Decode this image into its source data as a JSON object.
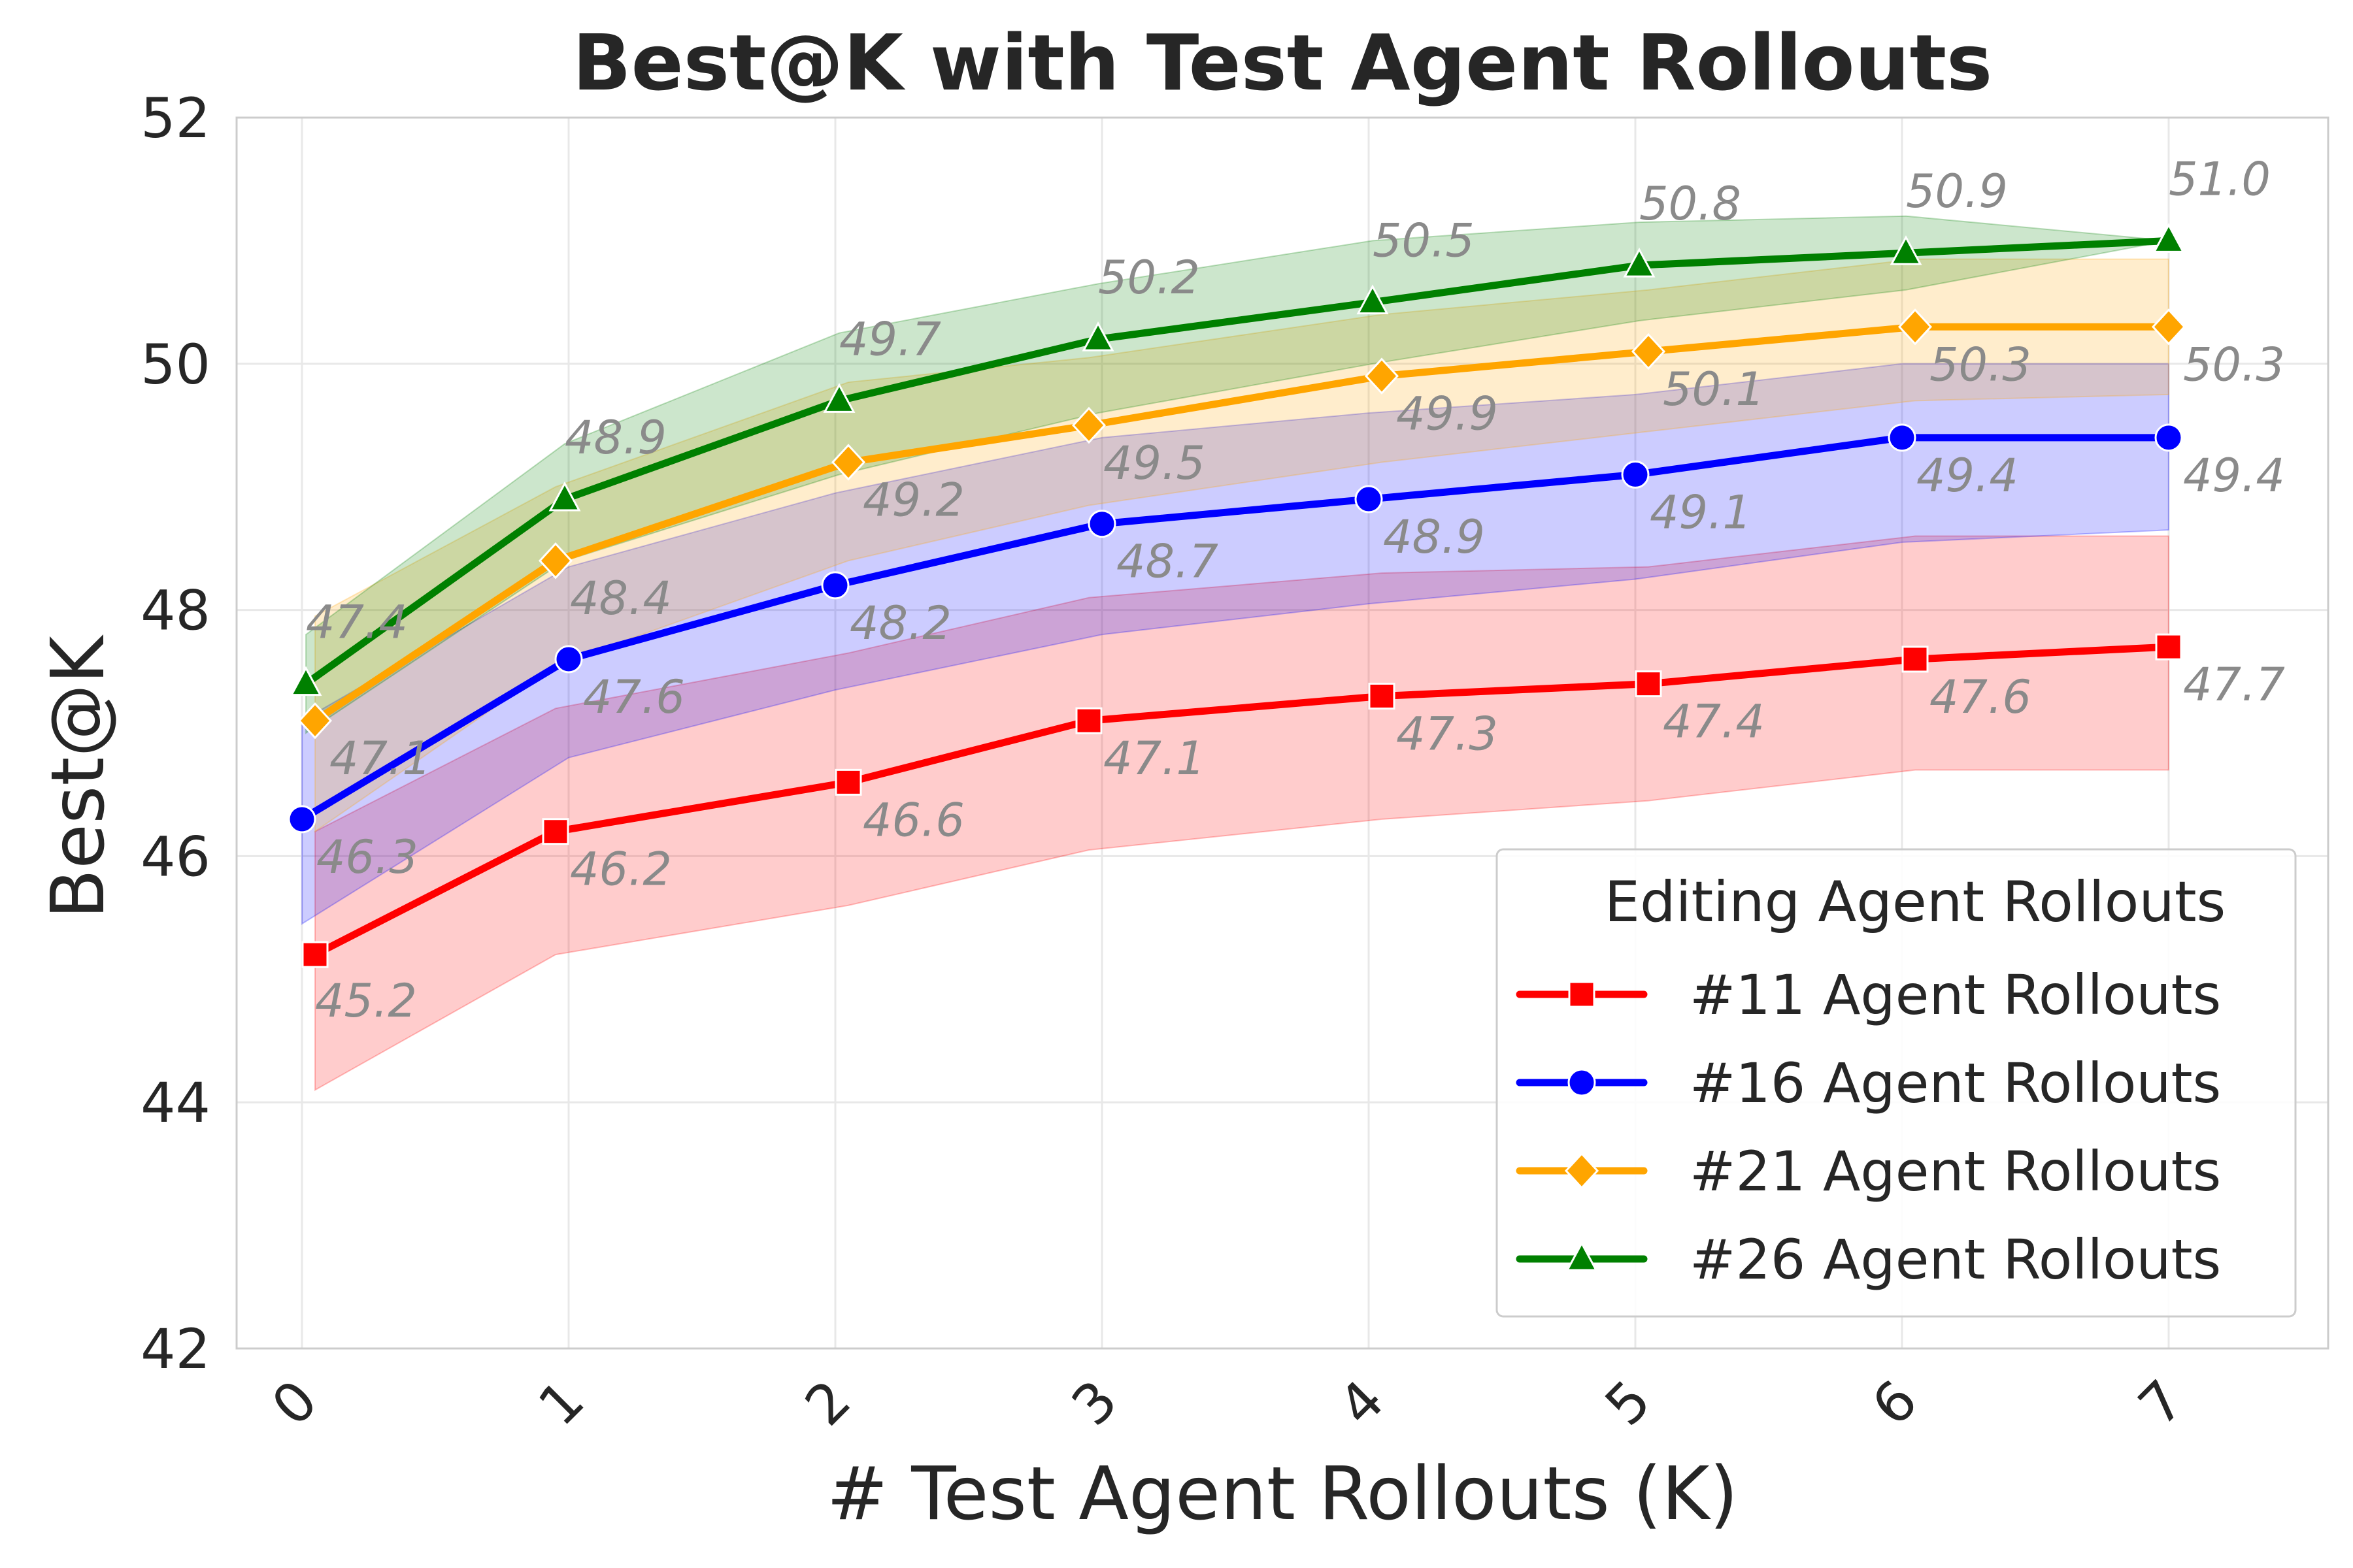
{
  "chart_data": {
    "type": "line",
    "title": "Best@K with Test Agent Rollouts",
    "xlabel": "# Test Agent Rollouts (K)",
    "ylabel": "Best@K",
    "x": [
      0,
      1,
      2,
      3,
      4,
      5,
      6,
      7
    ],
    "x_tick_labels": [
      "0",
      "1",
      "2",
      "3",
      "4",
      "5",
      "6",
      "7"
    ],
    "ylim": [
      42,
      52
    ],
    "y_ticks": [
      42,
      44,
      46,
      48,
      50,
      52
    ],
    "y_tick_labels": [
      "42",
      "44",
      "46",
      "48",
      "50",
      "52"
    ],
    "grid": true,
    "legend": {
      "title": "Editing Agent Rollouts",
      "placement": "lower-right"
    },
    "series": [
      {
        "name": "#11 Agent Rollouts",
        "color": "#ff0000",
        "marker": "square",
        "values": [
          45.2,
          46.2,
          46.6,
          47.1,
          47.3,
          47.4,
          47.6,
          47.7
        ],
        "labels": [
          "45.2",
          "46.2",
          "46.6",
          "47.1",
          "47.3",
          "47.4",
          "47.6",
          "47.7"
        ],
        "lower": [
          44.1,
          45.2,
          45.6,
          46.05,
          46.3,
          46.45,
          46.7,
          46.7
        ],
        "upper": [
          46.2,
          47.2,
          47.65,
          48.1,
          48.3,
          48.35,
          48.6,
          48.6
        ]
      },
      {
        "name": "#16 Agent Rollouts",
        "color": "#0000ff",
        "marker": "circle",
        "values": [
          46.3,
          47.6,
          48.2,
          48.7,
          48.9,
          49.1,
          49.4,
          49.4
        ],
        "labels": [
          "46.3",
          "47.6",
          "48.2",
          "48.7",
          "48.9",
          "49.1",
          "49.4",
          "49.4"
        ],
        "lower": [
          45.45,
          46.8,
          47.35,
          47.8,
          48.05,
          48.25,
          48.55,
          48.65
        ],
        "upper": [
          47.1,
          48.35,
          48.95,
          49.4,
          49.6,
          49.75,
          50.0,
          50.0
        ]
      },
      {
        "name": "#21 Agent Rollouts",
        "color": "#ffa500",
        "marker": "diamond",
        "values": [
          47.1,
          48.4,
          49.2,
          49.5,
          49.9,
          50.1,
          50.3,
          50.3
        ],
        "labels": [
          "47.1",
          "48.4",
          "49.2",
          "49.5",
          "49.9",
          "50.1",
          "50.3",
          "50.3"
        ],
        "lower": [
          46.2,
          47.55,
          48.4,
          48.85,
          49.2,
          49.45,
          49.7,
          49.75
        ],
        "upper": [
          47.95,
          49.0,
          49.85,
          50.05,
          50.4,
          50.6,
          50.85,
          50.85
        ]
      },
      {
        "name": "#26 Agent Rollouts",
        "color": "#008000",
        "marker": "triangle",
        "values": [
          47.4,
          48.9,
          49.7,
          50.2,
          50.5,
          50.8,
          50.9,
          51.0
        ],
        "labels": [
          "47.4",
          "48.9",
          "49.7",
          "50.2",
          "50.5",
          "50.8",
          "50.9",
          "51.0"
        ],
        "lower": [
          47.0,
          48.4,
          49.1,
          49.6,
          50.0,
          50.35,
          50.6,
          51.0
        ],
        "upper": [
          47.8,
          49.35,
          50.25,
          50.65,
          51.0,
          51.15,
          51.2,
          51.0
        ]
      }
    ]
  }
}
